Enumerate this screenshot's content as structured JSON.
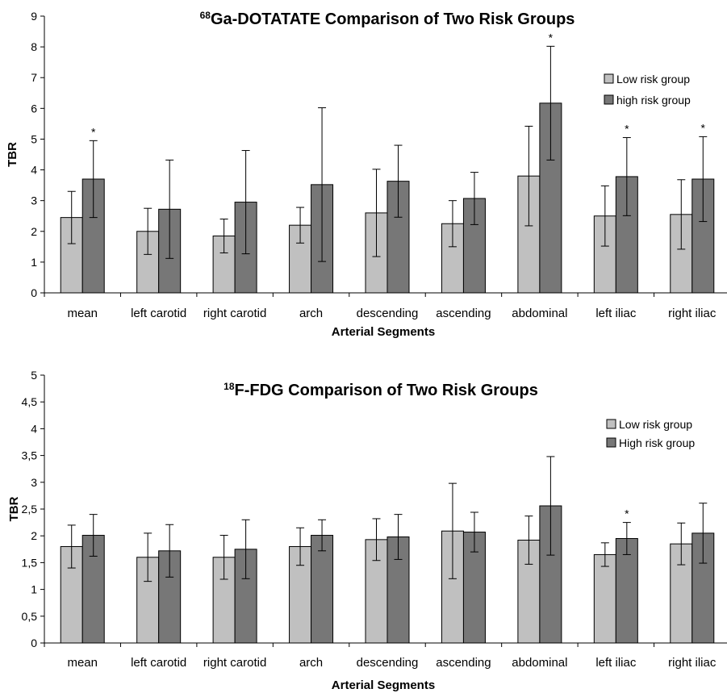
{
  "chart_data": [
    {
      "type": "bar",
      "title_sup": "68",
      "title": "Ga-DOTATATE Comparison of Two Risk Groups",
      "xlabel": "Arterial Segments",
      "ylabel": "TBR",
      "ylim": [
        0,
        9
      ],
      "yticks": [
        "0",
        "1",
        "2",
        "3",
        "4",
        "5",
        "6",
        "7",
        "8",
        "9"
      ],
      "categories": [
        "mean",
        "left carotid",
        "right carotid",
        "arch",
        "descending",
        "ascending",
        "abdominal",
        "left iliac",
        "right iliac"
      ],
      "legend_position": "top-right",
      "grid": false,
      "series": [
        {
          "name": "Low risk group",
          "color": "#c0c0c0",
          "values": [
            2.45,
            2.0,
            1.85,
            2.2,
            2.6,
            2.25,
            3.8,
            2.5,
            2.55
          ],
          "errors": [
            0.85,
            0.75,
            0.55,
            0.58,
            1.42,
            0.75,
            1.62,
            0.98,
            1.13
          ]
        },
        {
          "name": "high risk group",
          "color": "#777777",
          "values": [
            3.7,
            2.72,
            2.95,
            3.52,
            3.63,
            3.07,
            6.17,
            3.78,
            3.7
          ],
          "errors": [
            1.25,
            1.6,
            1.68,
            2.5,
            1.17,
            0.85,
            1.85,
            1.27,
            1.38
          ]
        }
      ],
      "annotations": [
        {
          "category": "mean",
          "text": "*"
        },
        {
          "category": "abdominal",
          "text": "*"
        },
        {
          "category": "left iliac",
          "text": "*"
        },
        {
          "category": "right iliac",
          "text": "*"
        }
      ]
    },
    {
      "type": "bar",
      "title_sup": "18",
      "title": "F-FDG Comparison of Two Risk Groups",
      "xlabel": "Arterial Segments",
      "ylabel": "TBR",
      "ylim": [
        0,
        5
      ],
      "yticks": [
        "0",
        "0,5",
        "1",
        "1,5",
        "2",
        "2,5",
        "3",
        "3,5",
        "4",
        "4,5",
        "5"
      ],
      "categories": [
        "mean",
        "left carotid",
        "right carotid",
        "arch",
        "descending",
        "ascending",
        "abdominal",
        "left iliac",
        "right iliac"
      ],
      "legend_position": "top-right",
      "grid": false,
      "series": [
        {
          "name": "Low risk group",
          "color": "#c0c0c0",
          "values": [
            1.8,
            1.6,
            1.6,
            1.8,
            1.93,
            2.09,
            1.92,
            1.65,
            1.85
          ],
          "errors": [
            0.4,
            0.45,
            0.41,
            0.35,
            0.39,
            0.89,
            0.45,
            0.22,
            0.39
          ]
        },
        {
          "name": "High risk group",
          "color": "#777777",
          "values": [
            2.01,
            1.72,
            1.75,
            2.01,
            1.98,
            2.07,
            2.56,
            1.95,
            2.05
          ],
          "errors": [
            0.39,
            0.49,
            0.55,
            0.29,
            0.42,
            0.37,
            0.92,
            0.3,
            0.56
          ]
        }
      ],
      "annotations": [
        {
          "category": "left iliac",
          "text": "*"
        }
      ]
    }
  ]
}
